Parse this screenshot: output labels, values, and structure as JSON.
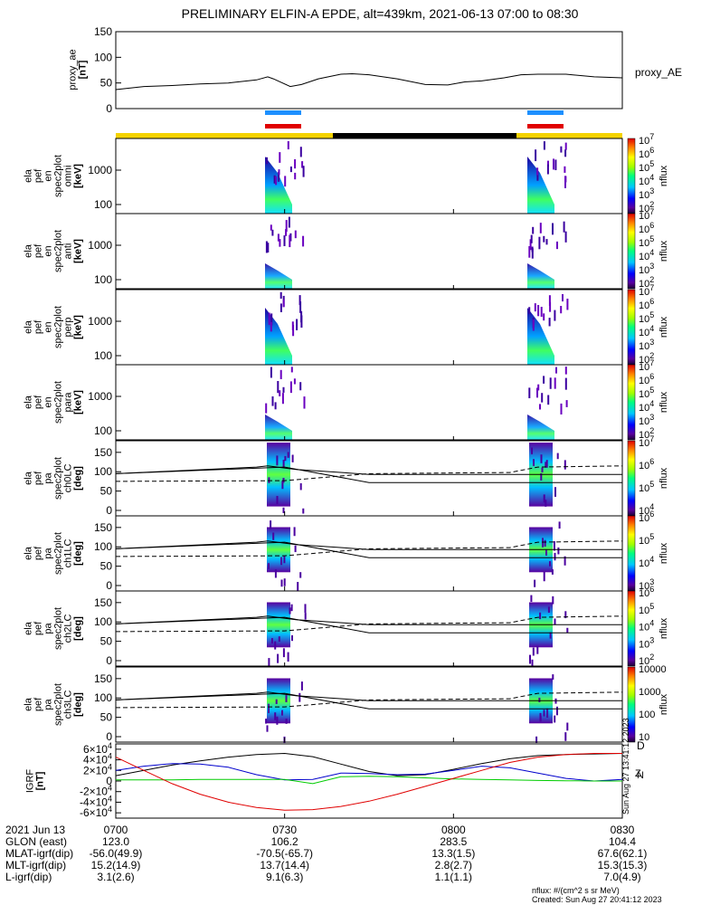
{
  "title": "PRELIMINARY ELFIN-A EPDE, alt=439km, 2021-06-13 07:00 to 08:30",
  "colors": {
    "state_bar_day": "#f5d300",
    "state_bar_night": "#000000",
    "marker_blue": "#1e90ff",
    "marker_red": "#e00000",
    "bx": "#000000",
    "by": "#0000cc",
    "bz": "#00cc00",
    "bt": "#e00000"
  },
  "proxy_ae": {
    "ylabel_lines": [
      "proxy_ae",
      "[nT]"
    ],
    "legend": "proxy_AE",
    "yticks": [
      "0",
      "50",
      "100",
      "150"
    ]
  },
  "spectra_panels": [
    {
      "ylabel_lines": [
        "ela",
        "pef",
        "en",
        "spec2plot",
        "omni",
        "[keV]"
      ],
      "yticks": [
        "100",
        "1000"
      ],
      "cbar_ticks": [
        "10^2",
        "10^3",
        "10^4",
        "10^5",
        "10^6",
        "10^7"
      ],
      "cbar_label": "nflux"
    },
    {
      "ylabel_lines": [
        "ela",
        "pef",
        "en",
        "spec2plot",
        "anti",
        "[keV]"
      ],
      "yticks": [
        "100",
        "1000"
      ],
      "cbar_ticks": [
        "10^2",
        "10^3",
        "10^4",
        "10^5",
        "10^6",
        "10^7"
      ],
      "cbar_label": "nflux"
    },
    {
      "ylabel_lines": [
        "ela",
        "pef",
        "en",
        "spec2plot",
        "perp",
        "[keV]"
      ],
      "yticks": [
        "100",
        "1000"
      ],
      "cbar_ticks": [
        "10^2",
        "10^3",
        "10^4",
        "10^5",
        "10^6",
        "10^7"
      ],
      "cbar_label": "nflux"
    },
    {
      "ylabel_lines": [
        "ela",
        "pef",
        "en",
        "spec2plot",
        "para",
        "[keV]"
      ],
      "yticks": [
        "100",
        "1000"
      ],
      "cbar_ticks": [
        "10^2",
        "10^3",
        "10^4",
        "10^5",
        "10^6",
        "10^7"
      ],
      "cbar_label": "nflux"
    }
  ],
  "pa_panels": [
    {
      "ylabel_lines": [
        "ela",
        "pef",
        "pa",
        "spec2plot",
        "ch0LC",
        "[deg]"
      ],
      "yticks": [
        "0",
        "50",
        "100",
        "150"
      ],
      "cbar_ticks": [
        "10^4",
        "10^5",
        "10^6",
        "10^7"
      ],
      "cbar_label": "nflux"
    },
    {
      "ylabel_lines": [
        "ela",
        "pef",
        "pa",
        "spec2plot",
        "ch1LC",
        "[deg]"
      ],
      "yticks": [
        "0",
        "50",
        "100",
        "150"
      ],
      "cbar_ticks": [
        "10^3",
        "10^4",
        "10^5",
        "10^6"
      ],
      "cbar_label": "nflux"
    },
    {
      "ylabel_lines": [
        "ela",
        "pef",
        "pa",
        "spec2plot",
        "ch2LC",
        "[deg]"
      ],
      "yticks": [
        "0",
        "50",
        "100",
        "150"
      ],
      "cbar_ticks": [
        "10^2",
        "10^3",
        "10^4",
        "10^5",
        "10^6"
      ],
      "cbar_label": "nflux"
    },
    {
      "ylabel_lines": [
        "ela",
        "pef",
        "pa",
        "spec2plot",
        "ch3LC",
        "[deg]"
      ],
      "yticks": [
        "0",
        "50",
        "100",
        "150"
      ],
      "cbar_ticks": [
        "10",
        "100",
        "1000",
        "10000"
      ],
      "cbar_label": "nflux"
    }
  ],
  "igrf_panel": {
    "ylabel_lines": [
      "IGRF",
      "[nT]"
    ],
    "yticks": [
      "-6×10^4",
      "-4×10^4",
      "-2×10^4",
      "0",
      "2×10^4",
      "4×10^4",
      "6×10^4"
    ],
    "side_text": "Sun Aug 27 13:41:12 2023"
  },
  "footer": {
    "rows": [
      {
        "label": "2021 Jun 13",
        "values": [
          "0700",
          "0730",
          "0800",
          "0830"
        ]
      },
      {
        "label": "GLON (east)",
        "values": [
          "123.0",
          "106.2",
          "283.5",
          "104.4"
        ]
      },
      {
        "label": "MLAT-igrf(dip)",
        "values": [
          "-56.0(49.9)",
          "-70.5(-65.7)",
          "13.3(1.5)",
          "67.6(62.1)"
        ]
      },
      {
        "label": "MLT-igrf(dip)",
        "values": [
          "15.2(14.9)",
          "13.7(14.4)",
          "2.8(2.7)",
          "15.3(15.3)"
        ]
      },
      {
        "label": "L-igrf(dip)",
        "values": [
          "3.1(2.6)",
          "9.1(6.3)",
          "1.1(1.1)",
          "7.0(4.9)"
        ]
      }
    ],
    "units_note": "nflux: #/(cm^2 s sr MeV)",
    "created": "Created: Sun Aug 27 20:41:12 2023"
  },
  "chart_data": [
    {
      "type": "line",
      "name": "proxy_ae",
      "x_minutes_after_0700": [
        0,
        5,
        10,
        15,
        20,
        25,
        27,
        28,
        31,
        33,
        36,
        40,
        42,
        45,
        50,
        55,
        59,
        62,
        65,
        69,
        72,
        75,
        80,
        85,
        90
      ],
      "values": [
        37,
        43,
        45,
        48,
        50,
        56,
        62,
        58,
        43,
        47,
        58,
        67,
        68,
        66,
        58,
        47,
        46,
        52,
        54,
        60,
        66,
        67,
        67,
        62,
        60
      ],
      "ylim": [
        0,
        150
      ]
    },
    {
      "type": "line",
      "name": "igrf_field",
      "x_minutes_after_0700": [
        0,
        5,
        10,
        15,
        20,
        25,
        30,
        35,
        40,
        45,
        50,
        55,
        60,
        65,
        70,
        75,
        80,
        85,
        90
      ],
      "series": [
        {
          "name": "black",
          "values": [
            10000,
            20000,
            30000,
            38000,
            45000,
            50000,
            52000,
            46000,
            32000,
            18000,
            10000,
            12000,
            22000,
            33000,
            42000,
            48000,
            50000,
            51000,
            52000
          ]
        },
        {
          "name": "blue",
          "values": [
            20000,
            28000,
            33000,
            32000,
            26000,
            12000,
            2000,
            3000,
            15000,
            14000,
            12000,
            13000,
            20000,
            28000,
            25000,
            15000,
            5000,
            0,
            3000
          ]
        },
        {
          "name": "green",
          "values": [
            2000,
            2000,
            2000,
            3000,
            3000,
            3000,
            3000,
            -5000,
            8000,
            9000,
            8000,
            6000,
            4000,
            3000,
            2000,
            1000,
            500,
            0,
            0
          ]
        },
        {
          "name": "red",
          "values": [
            45000,
            20000,
            -5000,
            -25000,
            -40000,
            -50000,
            -55000,
            -54000,
            -48000,
            -38000,
            -25000,
            -10000,
            5000,
            20000,
            35000,
            45000,
            50000,
            52000,
            52000
          ]
        }
      ],
      "ylim": [
        -70000,
        70000
      ]
    }
  ]
}
